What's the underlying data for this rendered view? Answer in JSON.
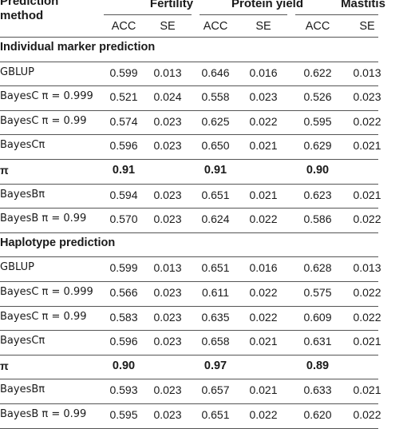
{
  "header": {
    "method_label": "Prediction\nmethod",
    "groups": [
      "Fertility",
      "Protein yield",
      "Mastitis"
    ],
    "sub_labels": [
      "ACC",
      "SE",
      "ACC",
      "SE",
      "ACC",
      "SE"
    ]
  },
  "sections": [
    {
      "title": "Individual marker prediction",
      "rows": [
        {
          "label": "GBLUP",
          "values": [
            "0.599",
            "0.013",
            "0.646",
            "0.016",
            "0.622",
            "0.013"
          ],
          "bold": false
        },
        {
          "label": "BayesC π = 0.999",
          "values": [
            "0.521",
            "0.024",
            "0.558",
            "0.023",
            "0.526",
            "0.023"
          ],
          "bold": false
        },
        {
          "label": "BayesC π = 0.99",
          "values": [
            "0.574",
            "0.023",
            "0.625",
            "0.022",
            "0.595",
            "0.022"
          ],
          "bold": false
        },
        {
          "label": "BayesCπ",
          "values": [
            "0.596",
            "0.023",
            "0.650",
            "0.021",
            "0.629",
            "0.021"
          ],
          "bold": false
        },
        {
          "label": "π",
          "values": [
            "0.91",
            "",
            "0.91",
            "",
            "0.90",
            ""
          ],
          "bold": true
        },
        {
          "label": "BayesBπ",
          "values": [
            "0.594",
            "0.023",
            "0.651",
            "0.021",
            "0.623",
            "0.021"
          ],
          "bold": false
        },
        {
          "label": "BayesB π = 0.99",
          "values": [
            "0.570",
            "0.023",
            "0.624",
            "0.022",
            "0.586",
            "0.022"
          ],
          "bold": false
        }
      ]
    },
    {
      "title": "Haplotype prediction",
      "rows": [
        {
          "label": "GBLUP",
          "values": [
            "0.599",
            "0.013",
            "0.651",
            "0.016",
            "0.628",
            "0.013"
          ],
          "bold": false
        },
        {
          "label": "BayesC π = 0.999",
          "values": [
            "0.566",
            "0.023",
            "0.611",
            "0.022",
            "0.575",
            "0.022"
          ],
          "bold": false
        },
        {
          "label": "BayesC π = 0.99",
          "values": [
            "0.583",
            "0.023",
            "0.635",
            "0.022",
            "0.609",
            "0.022"
          ],
          "bold": false
        },
        {
          "label": "BayesCπ",
          "values": [
            "0.596",
            "0.023",
            "0.658",
            "0.021",
            "0.631",
            "0.021"
          ],
          "bold": false
        },
        {
          "label": "π",
          "values": [
            "0.90",
            "",
            "0.97",
            "",
            "0.89",
            ""
          ],
          "bold": true
        },
        {
          "label": "BayesBπ",
          "values": [
            "0.593",
            "0.023",
            "0.657",
            "0.021",
            "0.633",
            "0.021"
          ],
          "bold": false
        },
        {
          "label": "BayesB π = 0.99",
          "values": [
            "0.595",
            "0.023",
            "0.651",
            "0.022",
            "0.620",
            "0.022"
          ],
          "bold": false
        }
      ]
    }
  ]
}
